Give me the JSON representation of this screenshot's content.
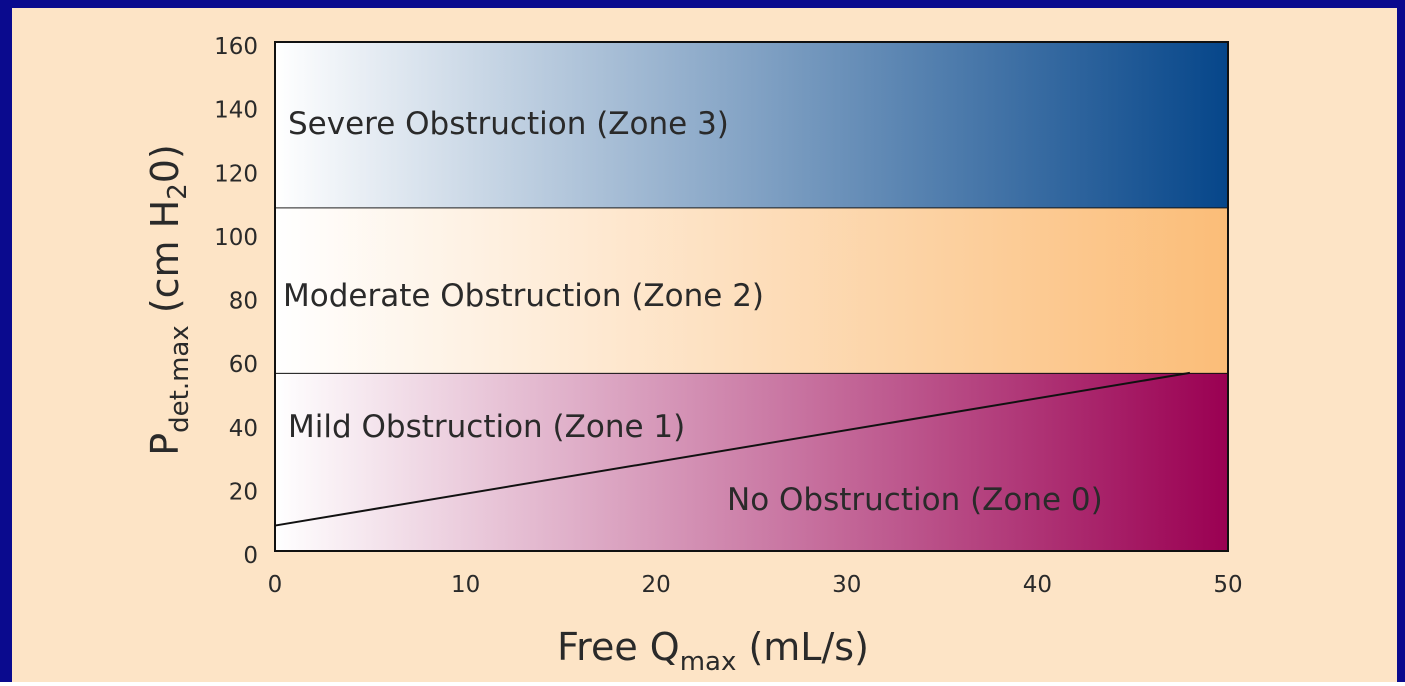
{
  "chart_data": {
    "type": "zones",
    "x_label": [
      "Free Q",
      "max",
      " (mL/s)"
    ],
    "y_label": [
      "P",
      "det.max",
      " (cm H",
      "2",
      "0)"
    ],
    "xlim": [
      0,
      50
    ],
    "xticks": [
      0,
      10,
      20,
      30,
      40,
      50
    ],
    "ylim": [
      0,
      160
    ],
    "yticks": [
      0,
      20,
      40,
      60,
      80,
      100,
      120,
      140,
      160
    ],
    "bands": [
      {
        "from": 0,
        "to": 56,
        "color": "#9a0052"
      },
      {
        "from": 56,
        "to": 108,
        "color": "#fbbd78"
      },
      {
        "from": 108,
        "to": 160,
        "color": "#06468a"
      }
    ],
    "zone_labels": [
      "No Obstruction (Zone 0)",
      "Mild Obstruction (Zone 1)",
      "Moderate Obstruction (Zone 2)",
      "Severe Obstruction (Zone 3)"
    ],
    "boundary_line": {
      "x": [
        0,
        48
      ],
      "y": [
        8,
        56
      ]
    }
  }
}
